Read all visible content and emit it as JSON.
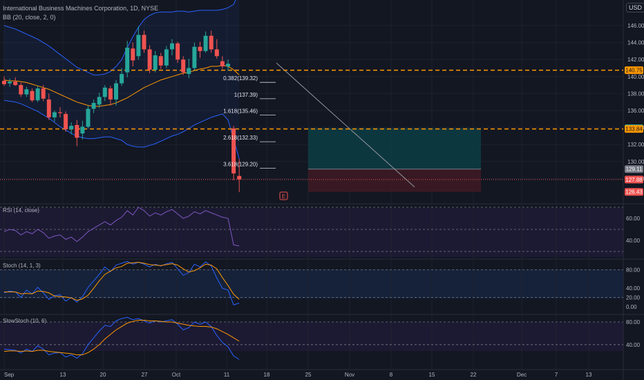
{
  "header": {
    "symbol_title": "International Business Machines Corporation, 1D, NYSE",
    "indicator": "BB (20, close, 2, 0)"
  },
  "currency": "USD",
  "colors": {
    "background": "#131722",
    "up": "#26a69a",
    "down": "#ef5350",
    "bb_band": "#2962ff",
    "bb_basis": "#ff9800",
    "dashed_level": "#ff9800",
    "rsi": "#7e57c2",
    "stoch_k": "#2962ff",
    "stoch_d": "#ff9800",
    "profit_zone": "#0d3b42",
    "loss_zone": "#3d1a24"
  },
  "price_axis": {
    "ticks": [
      "146.00",
      "144.00",
      "142.00",
      "140.00",
      "138.00",
      "136.00",
      "134.00",
      "132.00",
      "130.00",
      "128.00"
    ]
  },
  "price_badges": [
    {
      "label": "140.75",
      "value": 140.75,
      "bg": "#ff9800",
      "fg": "#131722"
    },
    {
      "label": "133.92",
      "value": 133.92,
      "bg": "#26a69a",
      "fg": "#ffffff"
    },
    {
      "label": "133.84",
      "value": 133.84,
      "bg": "#ff9800",
      "fg": "#131722"
    },
    {
      "label": "129.11",
      "value": 129.11,
      "bg": "#787b86",
      "fg": "#ffffff"
    },
    {
      "label": "127.88",
      "value": 127.88,
      "bg": "#ef5350",
      "fg": "#ffffff"
    },
    {
      "label": "126.43",
      "value": 126.43,
      "bg": "#ef5350",
      "fg": "#ffffff"
    }
  ],
  "horizontal_levels": [
    140.75,
    133.84
  ],
  "fib_levels": [
    {
      "label": "0.382(139.32)",
      "value": 139.32
    },
    {
      "label": "1(137.39)",
      "value": 137.39
    },
    {
      "label": "1.618(135.46)",
      "value": 135.46
    },
    {
      "label": "2.618(132.33)",
      "value": 132.33
    },
    {
      "label": "3.618(129.20)",
      "value": 129.2
    }
  ],
  "position": {
    "entry": 129.11,
    "target": 133.92,
    "stop": 126.43,
    "current": 127.88
  },
  "earnings_marker": "E",
  "time_axis": [
    "Sep",
    "13",
    "20",
    "27",
    "Oct",
    "11",
    "18",
    "25",
    "Nov",
    "8",
    "15",
    "22",
    "Dec",
    "7",
    "13"
  ],
  "candles": [
    {
      "o": 139.5,
      "h": 140.0,
      "l": 138.9,
      "c": 139.1
    },
    {
      "o": 139.2,
      "h": 139.8,
      "l": 138.8,
      "c": 139.4
    },
    {
      "o": 139.4,
      "h": 139.9,
      "l": 138.9,
      "c": 139.0
    },
    {
      "o": 139.0,
      "h": 139.3,
      "l": 137.6,
      "c": 137.9
    },
    {
      "o": 137.9,
      "h": 138.8,
      "l": 137.6,
      "c": 138.5
    },
    {
      "o": 138.3,
      "h": 138.6,
      "l": 137.0,
      "c": 137.2
    },
    {
      "o": 137.2,
      "h": 138.9,
      "l": 137.0,
      "c": 138.6
    },
    {
      "o": 138.6,
      "h": 139.0,
      "l": 137.1,
      "c": 137.4
    },
    {
      "o": 137.3,
      "h": 138.0,
      "l": 134.9,
      "c": 135.2
    },
    {
      "o": 135.2,
      "h": 136.0,
      "l": 134.7,
      "c": 135.8
    },
    {
      "o": 135.8,
      "h": 136.4,
      "l": 135.2,
      "c": 135.7
    },
    {
      "o": 135.6,
      "h": 135.9,
      "l": 133.5,
      "c": 133.8
    },
    {
      "o": 133.8,
      "h": 134.6,
      "l": 133.2,
      "c": 134.2
    },
    {
      "o": 134.3,
      "h": 134.9,
      "l": 131.8,
      "c": 132.8
    },
    {
      "o": 133.3,
      "h": 134.8,
      "l": 132.6,
      "c": 134.1
    },
    {
      "o": 134.1,
      "h": 136.6,
      "l": 133.9,
      "c": 136.2
    },
    {
      "o": 136.2,
      "h": 137.3,
      "l": 135.7,
      "c": 136.9
    },
    {
      "o": 136.7,
      "h": 138.1,
      "l": 136.3,
      "c": 137.6
    },
    {
      "o": 137.6,
      "h": 139.0,
      "l": 137.1,
      "c": 138.7
    },
    {
      "o": 138.6,
      "h": 138.9,
      "l": 136.6,
      "c": 137.3
    },
    {
      "o": 137.3,
      "h": 139.6,
      "l": 136.6,
      "c": 139.2
    },
    {
      "o": 139.2,
      "h": 141.0,
      "l": 138.9,
      "c": 140.3
    },
    {
      "o": 140.5,
      "h": 144.2,
      "l": 139.9,
      "c": 143.4
    },
    {
      "o": 143.3,
      "h": 144.0,
      "l": 141.2,
      "c": 141.9
    },
    {
      "o": 142.4,
      "h": 145.9,
      "l": 142.0,
      "c": 144.9
    },
    {
      "o": 144.9,
      "h": 145.4,
      "l": 142.8,
      "c": 143.2
    },
    {
      "o": 143.2,
      "h": 143.7,
      "l": 140.4,
      "c": 140.8
    },
    {
      "o": 140.8,
      "h": 143.0,
      "l": 140.5,
      "c": 142.5
    },
    {
      "o": 142.4,
      "h": 142.8,
      "l": 140.9,
      "c": 141.3
    },
    {
      "o": 141.3,
      "h": 143.6,
      "l": 141.0,
      "c": 143.2
    },
    {
      "o": 143.2,
      "h": 144.4,
      "l": 142.5,
      "c": 143.9
    },
    {
      "o": 143.9,
      "h": 144.1,
      "l": 141.6,
      "c": 142.0
    },
    {
      "o": 142.0,
      "h": 142.4,
      "l": 140.2,
      "c": 140.5
    },
    {
      "o": 140.3,
      "h": 142.1,
      "l": 139.8,
      "c": 141.0
    },
    {
      "o": 141.0,
      "h": 144.0,
      "l": 140.7,
      "c": 143.5
    },
    {
      "o": 143.5,
      "h": 144.1,
      "l": 142.2,
      "c": 143.0
    },
    {
      "o": 143.0,
      "h": 145.3,
      "l": 142.8,
      "c": 144.8
    },
    {
      "o": 144.8,
      "h": 145.4,
      "l": 142.8,
      "c": 143.2
    },
    {
      "o": 143.2,
      "h": 144.4,
      "l": 142.1,
      "c": 142.4
    },
    {
      "o": 141.8,
      "h": 142.4,
      "l": 140.9,
      "c": 141.2
    },
    {
      "o": 141.2,
      "h": 142.0,
      "l": 140.7,
      "c": 141.5
    },
    {
      "o": 133.9,
      "h": 134.2,
      "l": 127.8,
      "c": 128.6
    },
    {
      "o": 128.3,
      "h": 130.3,
      "l": 126.4,
      "c": 127.9
    }
  ],
  "bb_upper": [
    146.0,
    145.8,
    145.6,
    145.3,
    145.0,
    144.7,
    144.4,
    144.0,
    143.6,
    143.1,
    142.6,
    142.1,
    141.6,
    141.1,
    140.8,
    140.5,
    140.2,
    140.2,
    140.3,
    140.6,
    141.2,
    142.0,
    143.4,
    144.7,
    145.8,
    146.7,
    147.2,
    147.5,
    147.6,
    147.6,
    147.6,
    147.7,
    147.7,
    147.6,
    147.7,
    147.8,
    147.8,
    147.8,
    147.8,
    147.9,
    148.1,
    148.5,
    150.0
  ],
  "bb_basis": [
    139.6,
    139.5,
    139.5,
    139.4,
    139.3,
    139.1,
    138.9,
    138.7,
    138.5,
    138.2,
    137.9,
    137.6,
    137.3,
    137.0,
    136.8,
    136.6,
    136.5,
    136.5,
    136.6,
    136.7,
    136.9,
    137.2,
    137.5,
    137.9,
    138.3,
    138.7,
    139.0,
    139.3,
    139.6,
    139.8,
    140.0,
    140.2,
    140.4,
    140.5,
    140.7,
    140.9,
    141.0,
    141.2,
    141.2,
    141.3,
    141.2,
    140.8,
    140.2
  ],
  "bb_lower": [
    137.2,
    137.1,
    137.0,
    136.8,
    136.5,
    136.2,
    135.9,
    135.5,
    135.1,
    134.6,
    134.1,
    133.7,
    133.3,
    133.0,
    132.8,
    132.7,
    132.7,
    132.8,
    132.9,
    132.9,
    132.7,
    132.5,
    132.0,
    131.8,
    131.7,
    131.7,
    131.9,
    132.1,
    132.4,
    132.7,
    133.0,
    133.2,
    133.5,
    133.9,
    134.3,
    134.6,
    134.9,
    135.2,
    135.4,
    135.6,
    134.9,
    132.6,
    130.3
  ],
  "rsi": {
    "label": "RSI (14, close)",
    "ticks": [
      "60.00",
      "40.00"
    ],
    "values": [
      48,
      50,
      49,
      45,
      48,
      46,
      50,
      47,
      42,
      44,
      45,
      41,
      43,
      39,
      43,
      48,
      51,
      54,
      57,
      54,
      58,
      61,
      67,
      63,
      70,
      67,
      62,
      65,
      63,
      66,
      68,
      64,
      60,
      62,
      66,
      64,
      67,
      65,
      63,
      61,
      60,
      36,
      35
    ]
  },
  "stoch": {
    "label": "Stoch (14, 1, 3)",
    "ticks": [
      "80.00",
      "40.00",
      "20.00",
      "0.00"
    ],
    "k": [
      30,
      34,
      32,
      20,
      36,
      28,
      42,
      30,
      16,
      24,
      26,
      12,
      20,
      10,
      22,
      42,
      56,
      70,
      86,
      76,
      90,
      94,
      98,
      92,
      96,
      92,
      86,
      92,
      88,
      93,
      96,
      82,
      68,
      74,
      92,
      86,
      97,
      88,
      62,
      40,
      36,
      4,
      8
    ],
    "d": [
      32,
      32,
      32,
      28,
      29,
      28,
      34,
      33,
      30,
      23,
      22,
      21,
      19,
      14,
      17,
      25,
      40,
      56,
      70,
      77,
      84,
      87,
      94,
      95,
      96,
      94,
      91,
      90,
      89,
      91,
      93,
      90,
      82,
      75,
      78,
      84,
      92,
      90,
      82,
      63,
      46,
      27,
      16
    ]
  },
  "slowstoch": {
    "label": "SlowStoch (10, 6)",
    "ticks": [
      "80.00",
      "40.00"
    ],
    "k": [
      32,
      31,
      30,
      25,
      32,
      28,
      38,
      32,
      22,
      25,
      26,
      18,
      22,
      16,
      24,
      40,
      52,
      64,
      74,
      72,
      82,
      86,
      88,
      84,
      86,
      82,
      78,
      82,
      80,
      82,
      84,
      76,
      66,
      70,
      80,
      76,
      80,
      72,
      56,
      44,
      36,
      20,
      14
    ],
    "d": [
      28,
      29,
      29,
      28,
      29,
      28,
      30,
      30,
      28,
      27,
      26,
      25,
      24,
      22,
      22,
      26,
      32,
      40,
      50,
      58,
      66,
      72,
      78,
      81,
      83,
      83,
      82,
      82,
      81,
      80,
      80,
      78,
      76,
      74,
      73,
      72,
      72,
      71,
      68,
      63,
      58,
      52,
      46
    ]
  }
}
